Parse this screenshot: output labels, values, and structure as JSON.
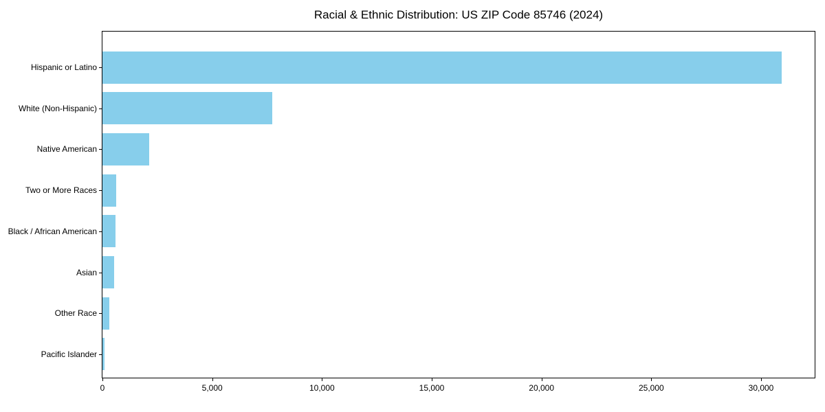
{
  "chart_data": {
    "type": "bar",
    "orientation": "horizontal",
    "title": "Racial & Ethnic Distribution: US ZIP Code 85746 (2024)",
    "categories": [
      "Hispanic or Latino",
      "White (Non-Hispanic)",
      "Native American",
      "Two or More Races",
      "Black / African American",
      "Asian",
      "Other Race",
      "Pacific Islander"
    ],
    "values": [
      30950,
      7750,
      2130,
      620,
      590,
      530,
      310,
      100
    ],
    "xlabel": "",
    "ylabel": "",
    "xlim": [
      0,
      32500
    ],
    "x_ticks": [
      0,
      5000,
      10000,
      15000,
      20000,
      25000,
      30000
    ],
    "x_tick_labels": [
      "0",
      "5,000",
      "10,000",
      "15,000",
      "20,000",
      "25,000",
      "30,000"
    ],
    "bar_color": "#87CEEB",
    "axis_color": "#000000",
    "background_color": "#ffffff",
    "grid": false,
    "legend": false
  }
}
